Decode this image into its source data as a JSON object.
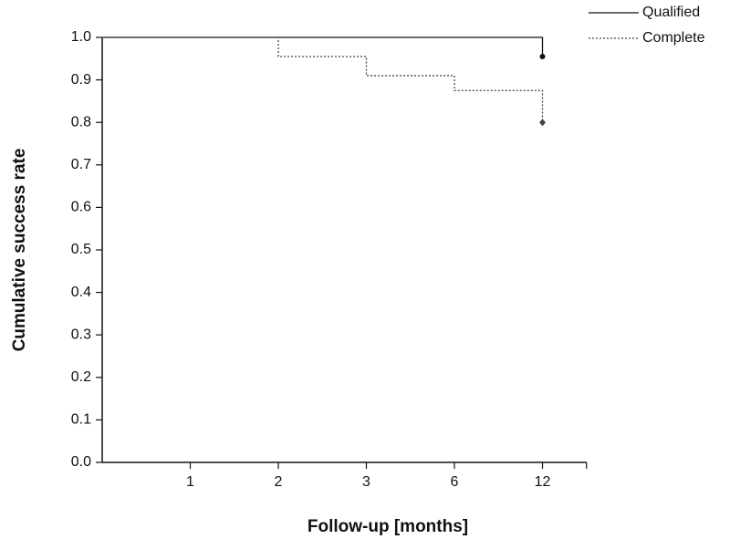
{
  "chart_data": {
    "type": "step",
    "x_label": "Follow-up [months]",
    "y_label": "Cumulative success rate",
    "categories": [
      "1",
      "2",
      "3",
      "6",
      "12"
    ],
    "series": [
      {
        "name": "Qualified",
        "color": "#111111",
        "dash": "solid",
        "marker": "circle",
        "values": [
          1,
          1,
          1,
          1,
          0.955
        ]
      },
      {
        "name": "Complete",
        "color": "#444444",
        "dash": "dotted",
        "marker": "diamond",
        "values": [
          1,
          0.955,
          0.91,
          0.875,
          0.8
        ]
      }
    ],
    "ylim": [
      0,
      1
    ],
    "yticks": [
      {
        "value": 0,
        "label": "0.0"
      },
      0.1,
      0.2,
      0.3,
      0.4,
      0.5,
      0.6,
      0.7,
      0.8,
      0.9,
      {
        "value": 1,
        "label": "1.0"
      }
    ],
    "grid": false,
    "legend": "top-right"
  }
}
